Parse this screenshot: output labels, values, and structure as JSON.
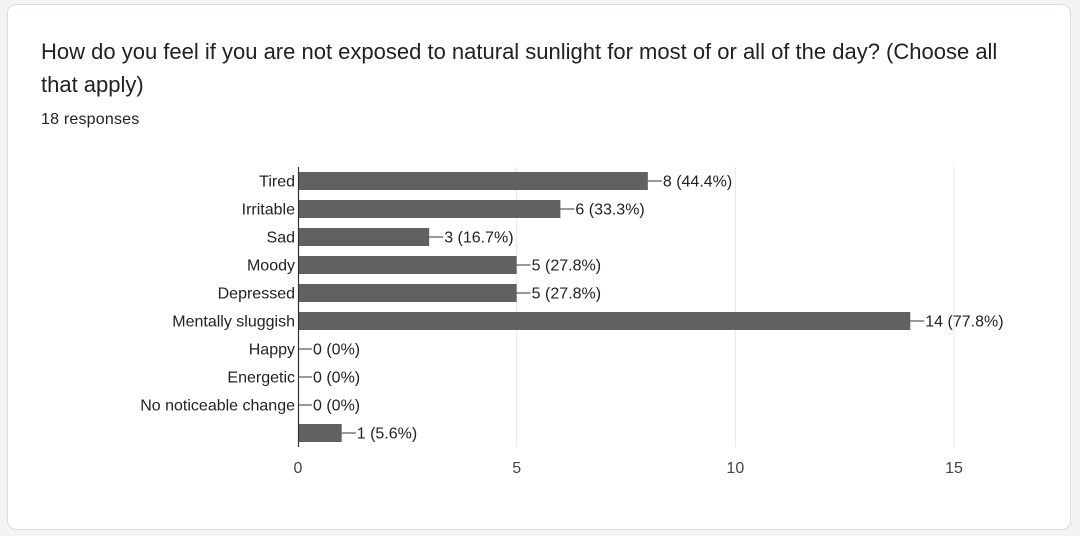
{
  "question": {
    "title": "How do you feel if you are not exposed to natural sunlight for most of or all of the day? (Choose all that apply)",
    "responses": "18 responses"
  },
  "colors": {
    "bar": "#616161",
    "grid": "#e6e6e6",
    "axis": "#333333"
  },
  "chart_data": {
    "type": "bar",
    "orientation": "horizontal",
    "categories": [
      "Tired",
      "Irritable",
      "Sad",
      "Moody",
      "Depressed",
      "Mentally sluggish",
      "Happy",
      "Energetic",
      "No noticeable change",
      ""
    ],
    "values": [
      8,
      6,
      3,
      5,
      5,
      14,
      0,
      0,
      0,
      1
    ],
    "data_labels": [
      "8 (44.4%)",
      "6 (33.3%)",
      "3 (16.7%)",
      "5 (27.8%)",
      "5 (27.8%)",
      "14 (77.8%)",
      "0 (0%)",
      "0 (0%)",
      "0 (0%)",
      "1 (5.6%)"
    ],
    "xlim": [
      0,
      15
    ],
    "xticks": [
      0,
      5,
      10,
      15
    ],
    "grid": true,
    "title": "",
    "xlabel": "",
    "ylabel": ""
  }
}
